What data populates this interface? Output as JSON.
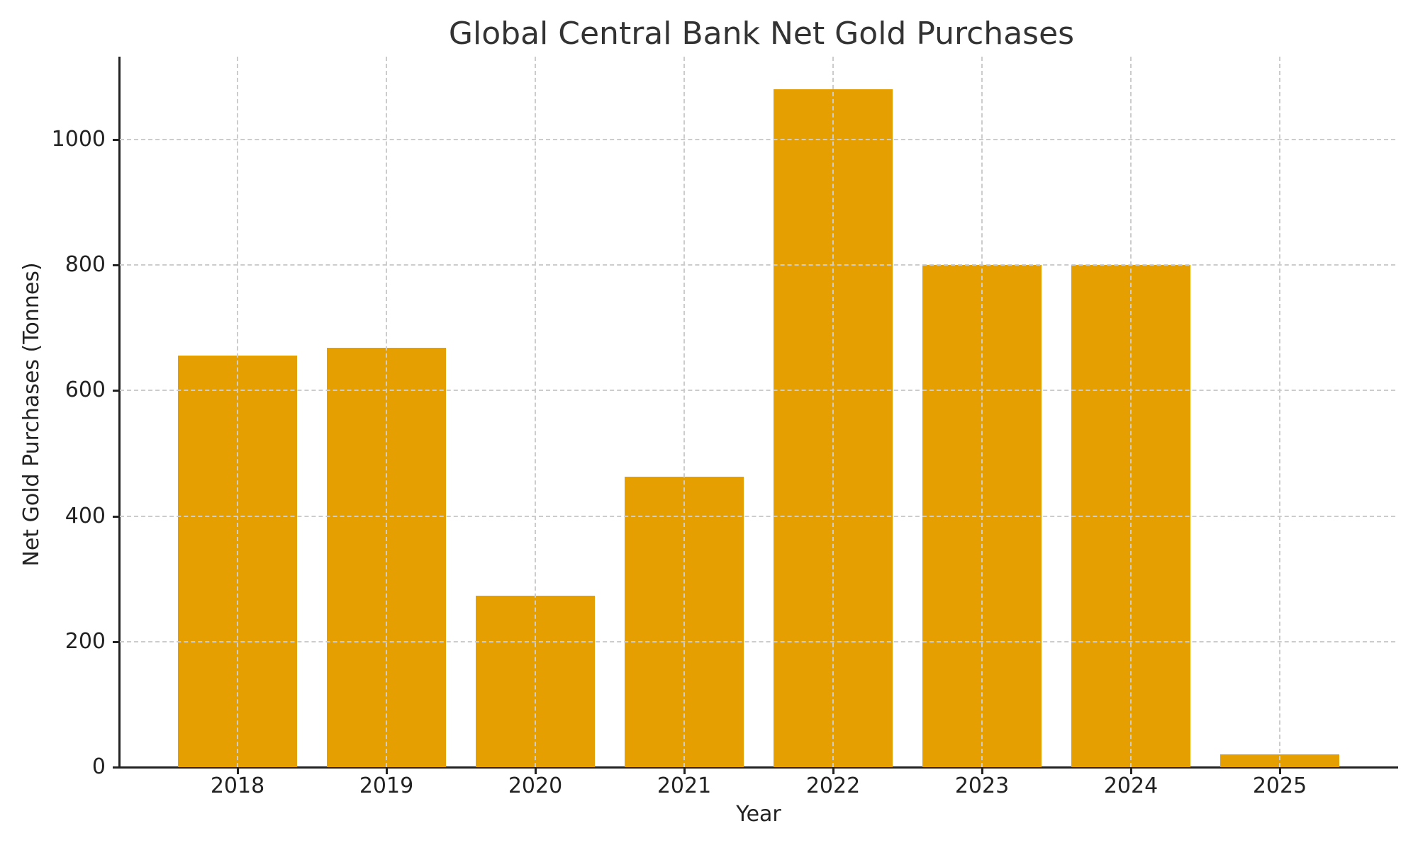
{
  "chart_data": {
    "type": "bar",
    "title": "Global Central Bank Net Gold Purchases",
    "xlabel": "Year",
    "ylabel": "Net Gold Purchases (Tonnes)",
    "categories": [
      "2018",
      "2019",
      "2020",
      "2021",
      "2022",
      "2023",
      "2024",
      "2025"
    ],
    "values": [
      656,
      668,
      273,
      463,
      1080,
      800,
      800,
      20
    ],
    "ylim": [
      0,
      1132
    ],
    "yticks": [
      0,
      200,
      400,
      600,
      800,
      1000
    ],
    "grid": true,
    "legend": null,
    "bar_color": "#E69F00"
  },
  "labels": {
    "title": "Global Central Bank Net Gold Purchases",
    "xlabel": "Year",
    "ylabel": "Net Gold Purchases (Tonnes)",
    "yticks": [
      "0",
      "200",
      "400",
      "600",
      "800",
      "1000"
    ],
    "xticks": [
      "2018",
      "2019",
      "2020",
      "2021",
      "2022",
      "2023",
      "2024",
      "2025"
    ]
  },
  "colors": {
    "bar": "#E69F00",
    "grid": "#cccccc",
    "axis": "#222222",
    "title": "#333333"
  }
}
